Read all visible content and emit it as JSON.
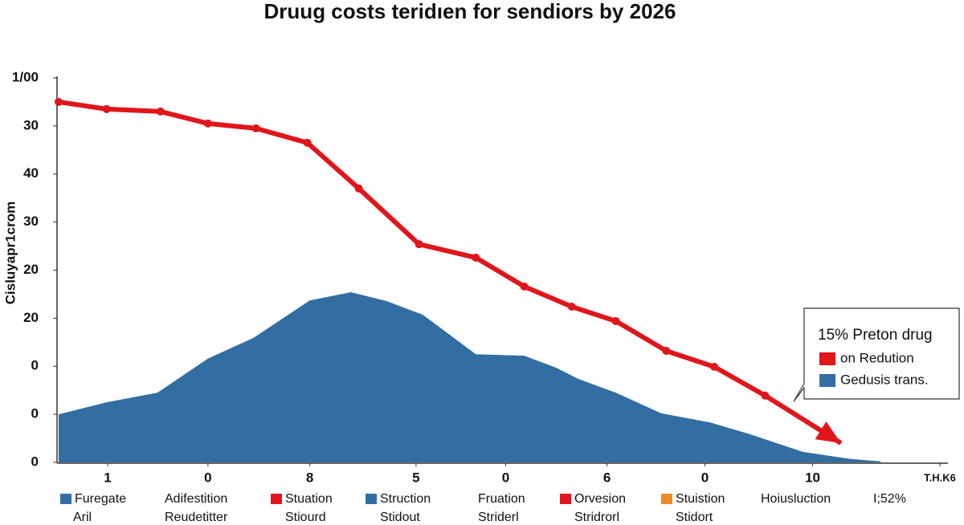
{
  "chart_data": {
    "type": "line",
    "title": "Druug costs teridıen for sendiors by 2026",
    "y_label": "Cisluyapr1crom",
    "xlim": [
      0,
      18
    ],
    "xticks": [
      {
        "value": 1,
        "label": "1"
      },
      {
        "value": 3.05,
        "label": "0"
      },
      {
        "value": 5.13,
        "label": "8"
      },
      {
        "value": 7.3,
        "label": "5"
      },
      {
        "value": 9.13,
        "label": "0"
      },
      {
        "value": 11.2,
        "label": "6"
      },
      {
        "value": 13.2,
        "label": "0"
      },
      {
        "value": 15.4,
        "label": "10"
      },
      {
        "value": 18,
        "label": "T.H.K6"
      }
    ],
    "ylim": [
      0,
      8
    ],
    "yticks": [
      {
        "value": 0,
        "label": "0"
      },
      {
        "value": 1,
        "label": "0"
      },
      {
        "value": 2,
        "label": "0"
      },
      {
        "value": 3,
        "label": "20"
      },
      {
        "value": 4,
        "label": "20"
      },
      {
        "value": 5,
        "label": "30"
      },
      {
        "value": 6,
        "label": "40"
      },
      {
        "value": 7,
        "label": "30"
      },
      {
        "value": 8,
        "label": "1/00"
      }
    ],
    "series": [
      {
        "name": "on Redution",
        "type": "line",
        "color": "#e0161b",
        "x": [
          0,
          0.98,
          2.08,
          3.05,
          4.03,
          5.08,
          6.13,
          7.36,
          8.52,
          9.51,
          10.48,
          11.38,
          12.41,
          13.39,
          14.43,
          15.98
        ],
        "values": [
          7.5,
          7.35,
          7.3,
          7.05,
          6.95,
          6.65,
          5.7,
          4.54,
          4.26,
          3.66,
          3.24,
          2.94,
          2.32,
          1.99,
          1.39,
          0.4
        ]
      },
      {
        "name": "Gedusis trans.",
        "type": "area",
        "color": "#336ea2",
        "x": [
          0,
          0.98,
          2.02,
          3.05,
          3.98,
          5.13,
          5.97,
          6.69,
          7.44,
          8.52,
          9.51,
          10.16,
          10.61,
          11.38,
          12.31,
          13.31,
          14.08,
          15.2,
          16.18,
          16.79
        ],
        "values": [
          1.0,
          1.25,
          1.45,
          2.16,
          2.59,
          3.37,
          3.54,
          3.36,
          3.07,
          2.25,
          2.22,
          1.97,
          1.74,
          1.45,
          1.02,
          0.83,
          0.6,
          0.22,
          0.07,
          0.02
        ]
      }
    ],
    "legend_title": "15% Preton drug",
    "legend_position": "right",
    "bottom_legend": [
      {
        "label": "Furegate",
        "sublabel": "Aril",
        "color": "#336ea2"
      },
      {
        "label": "Adifestition",
        "sublabel": "Reudetitter"
      },
      {
        "label": "Stuation",
        "sublabel": "Stiourd",
        "color": "#e0161b"
      },
      {
        "label": "Struction",
        "sublabel": "Stidout",
        "color": "#336ea2"
      },
      {
        "label": "Fruation",
        "sublabel": "Striderl"
      },
      {
        "label": "Orvesion",
        "sublabel": "Stridrorl",
        "color": "#e0161b"
      },
      {
        "label": "Stuistion",
        "sublabel": "Stidort",
        "color": "#f08a24"
      },
      {
        "label": "Hoiusluction"
      },
      {
        "label": "I;52%"
      }
    ]
  }
}
